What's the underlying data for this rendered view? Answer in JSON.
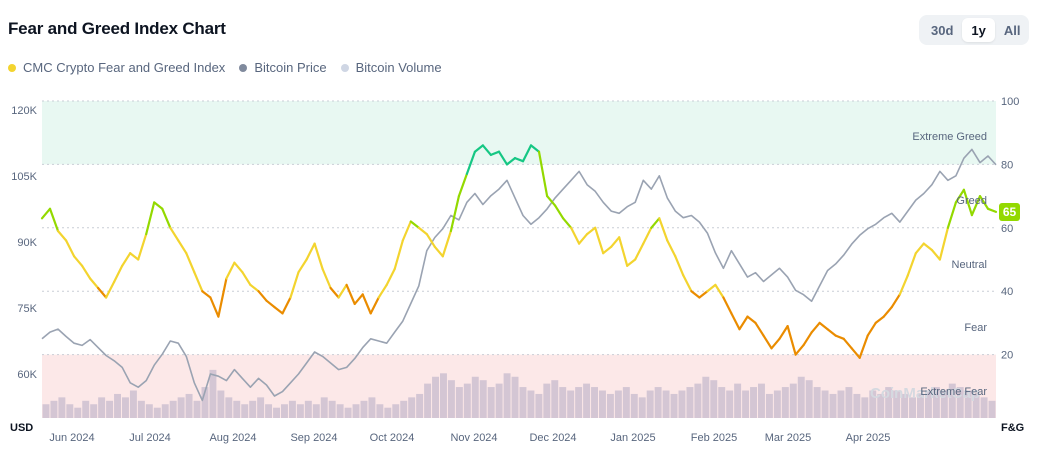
{
  "header": {
    "title": "Fear and Greed Index Chart",
    "range_options": [
      "30d",
      "1y",
      "All"
    ],
    "selected_range": "1y"
  },
  "legend": [
    {
      "label": "CMC Crypto Fear and Greed Index",
      "color": "#f3d42f"
    },
    {
      "label": "Bitcoin Price",
      "color": "#808a9d"
    },
    {
      "label": "Bitcoin Volume",
      "color": "#cfd6e4"
    }
  ],
  "watermark": "CoinMarketCap",
  "chart_data": {
    "type": "line",
    "y_left": {
      "unit": "USD",
      "ticks": [
        "120K",
        "105K",
        "90K",
        "75K",
        "60K"
      ],
      "tick_values": [
        120000,
        105000,
        90000,
        75000,
        60000
      ],
      "range": [
        50000,
        122000
      ]
    },
    "y_right": {
      "unit": "F&G",
      "ticks": [
        "100",
        "80",
        "60",
        "40",
        "20"
      ],
      "tick_values": [
        100,
        80,
        60,
        40,
        20
      ],
      "range": [
        0,
        100
      ]
    },
    "x_ticks": [
      "Jun 2024",
      "Jul 2024",
      "Aug 2024",
      "Sep 2024",
      "Oct 2024",
      "Nov 2024",
      "Dec 2024",
      "Jan 2025",
      "Feb 2025",
      "Mar 2025",
      "Apr 2025"
    ],
    "zones": [
      {
        "label": "Extreme Greed",
        "from": 80,
        "to": 100,
        "color": "#e8f8f2"
      },
      {
        "label": "Greed",
        "from": 60,
        "to": 80
      },
      {
        "label": "Neutral",
        "from": 40,
        "to": 60
      },
      {
        "label": "Fear",
        "from": 20,
        "to": 40
      },
      {
        "label": "Extreme Fear",
        "from": 0,
        "to": 20,
        "color": "#fce8e8"
      }
    ],
    "current_value": "65",
    "current_color": "#93d900",
    "fg_colors": {
      "extreme_fear": "#ea3943",
      "fear": "#ea8c00",
      "neutral": "#f3d42f",
      "greed": "#93d900",
      "extreme_greed": "#16c784"
    },
    "series": [
      {
        "name": "CMC Crypto Fear and Greed Index",
        "axis": "right",
        "values": [
          63,
          66,
          59,
          56,
          51,
          48,
          44,
          41,
          38,
          43,
          48,
          52,
          50,
          58,
          68,
          66,
          60,
          56,
          52,
          46,
          40,
          38,
          32,
          44,
          49,
          46,
          42,
          40,
          37,
          35,
          33,
          38,
          46,
          50,
          55,
          47,
          41,
          38,
          42,
          36,
          39,
          33,
          38,
          42,
          47,
          56,
          62,
          60,
          58,
          54,
          51,
          59,
          70,
          77,
          84,
          86,
          83,
          84,
          80,
          82,
          81,
          86,
          84,
          70,
          67,
          63,
          60,
          55,
          58,
          60,
          52,
          54,
          57,
          48,
          50,
          55,
          60,
          63,
          56,
          51,
          45,
          40,
          38,
          40,
          42,
          38,
          33,
          28,
          32,
          30,
          26,
          22,
          25,
          29,
          20,
          23,
          27,
          30,
          28,
          26,
          25,
          22,
          19,
          26,
          30,
          32,
          35,
          39,
          45,
          52,
          55,
          53,
          50,
          60,
          68,
          72,
          64,
          70,
          66,
          65
        ]
      },
      {
        "name": "Bitcoin Price",
        "axis": "left",
        "values": [
          68000,
          69500,
          70200,
          68500,
          67000,
          66500,
          67800,
          66000,
          64200,
          63000,
          61500,
          58000,
          57000,
          58500,
          62000,
          64500,
          67500,
          67000,
          64000,
          58000,
          54000,
          60000,
          59500,
          58500,
          61000,
          59000,
          57000,
          59000,
          57500,
          55000,
          56000,
          58000,
          60000,
          62500,
          65000,
          64000,
          62500,
          61000,
          61500,
          63500,
          66000,
          68000,
          67500,
          67000,
          69500,
          72000,
          76000,
          80000,
          88000,
          91000,
          93000,
          96000,
          95000,
          99000,
          101000,
          98500,
          100500,
          102000,
          104000,
          100000,
          96000,
          94000,
          95500,
          97500,
          100000,
          102000,
          104000,
          106000,
          103000,
          101500,
          99000,
          97000,
          96500,
          98000,
          99000,
          104000,
          102000,
          105000,
          100000,
          97000,
          95500,
          96000,
          94500,
          92000,
          87500,
          84000,
          88000,
          85000,
          82000,
          83000,
          81000,
          82500,
          84000,
          82000,
          79000,
          78000,
          76500,
          80000,
          83500,
          85000,
          87000,
          89500,
          91500,
          93000,
          94000,
          95500,
          96500,
          94500,
          97000,
          99500,
          101000,
          103000,
          106000,
          104000,
          105000,
          109000,
          111000,
          108000,
          109500,
          107500
        ]
      },
      {
        "name": "Bitcoin Volume",
        "axis": "volume",
        "values": [
          4,
          5,
          6,
          4,
          3,
          5,
          4,
          6,
          5,
          7,
          6,
          8,
          5,
          4,
          3,
          4,
          5,
          6,
          7,
          5,
          9,
          14,
          8,
          6,
          5,
          4,
          5,
          6,
          4,
          3,
          4,
          5,
          4,
          5,
          4,
          6,
          5,
          4,
          3,
          4,
          5,
          6,
          4,
          3,
          4,
          5,
          6,
          7,
          10,
          12,
          13,
          11,
          9,
          10,
          12,
          11,
          9,
          10,
          13,
          12,
          9,
          8,
          7,
          10,
          11,
          9,
          8,
          9,
          10,
          9,
          8,
          7,
          8,
          9,
          7,
          6,
          8,
          9,
          8,
          7,
          8,
          9,
          10,
          12,
          11,
          9,
          8,
          10,
          8,
          9,
          10,
          7,
          8,
          9,
          10,
          12,
          11,
          9,
          8,
          7,
          8,
          9,
          7,
          6,
          8,
          7,
          9,
          8,
          7,
          6,
          7,
          8,
          9,
          8,
          10,
          9,
          8,
          7,
          6,
          5
        ]
      }
    ]
  }
}
